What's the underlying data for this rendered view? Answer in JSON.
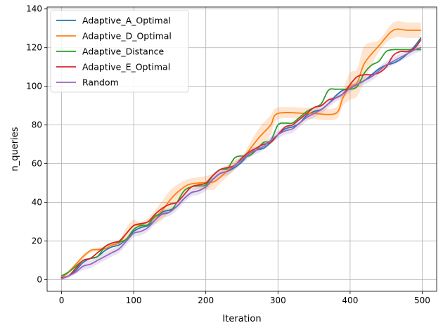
{
  "chart_data": {
    "type": "line",
    "title": "",
    "xlabel": "Iteration",
    "ylabel": "n_queries",
    "xlim": [
      -20,
      520
    ],
    "ylim": [
      -6,
      141
    ],
    "xticks": [
      0,
      100,
      200,
      300,
      400,
      500
    ],
    "yticks": [
      0,
      20,
      40,
      60,
      80,
      100,
      120,
      140
    ],
    "grid": true,
    "legend_position": "top-left",
    "series": [
      {
        "name": "Adaptive_A_Optimal",
        "color": "#1f77b4",
        "x": [
          0,
          10,
          20,
          30,
          40,
          50,
          60,
          70,
          80,
          90,
          100,
          110,
          120,
          130,
          140,
          150,
          160,
          170,
          180,
          190,
          200,
          210,
          220,
          230,
          240,
          250,
          260,
          270,
          280,
          290,
          300,
          310,
          320,
          330,
          340,
          350,
          360,
          370,
          380,
          390,
          400,
          410,
          420,
          430,
          440,
          450,
          460,
          470,
          480,
          490,
          498
        ],
        "y": [
          1,
          2,
          5,
          9,
          11,
          12,
          15,
          17,
          18,
          21,
          25,
          27,
          28,
          31,
          35,
          36,
          38,
          42,
          45,
          46,
          48,
          52,
          55,
          56,
          58,
          61,
          65,
          67,
          68,
          71,
          75,
          78,
          79,
          81,
          85,
          87,
          88,
          91,
          95,
          98,
          99,
          101,
          103,
          106,
          109,
          111,
          112,
          114,
          117,
          121,
          125
        ]
      },
      {
        "name": "Adaptive_D_Optimal",
        "color": "#ff7f0e",
        "band": true,
        "x": [
          0,
          10,
          20,
          30,
          40,
          45,
          60,
          70,
          80,
          90,
          100,
          110,
          125,
          140,
          150,
          160,
          175,
          190,
          210,
          220,
          235,
          250,
          260,
          275,
          290,
          300,
          340,
          350,
          380,
          390,
          400,
          410,
          420,
          440,
          460,
          480,
          498
        ],
        "y": [
          1,
          4,
          8,
          12,
          15,
          15.5,
          16,
          18,
          19,
          24,
          28,
          28.5,
          31,
          36,
          41,
          45,
          49,
          50,
          50.5,
          53,
          58,
          62,
          67,
          74,
          80,
          86,
          86,
          86,
          86,
          94,
          100,
          102,
          112,
          121,
          129,
          129,
          129
        ],
        "band_halfwidth": [
          0,
          1,
          1,
          1,
          1,
          1,
          1,
          1,
          1,
          3,
          3,
          1,
          3,
          5,
          5,
          4,
          3,
          3,
          4,
          3,
          3,
          2,
          3,
          5,
          5,
          3,
          3,
          3,
          3,
          4,
          7,
          7,
          9,
          3,
          4,
          4,
          4
        ]
      },
      {
        "name": "Adaptive_Distance",
        "color": "#2ca02c",
        "x": [
          0,
          10,
          20,
          30,
          40,
          50,
          60,
          70,
          80,
          90,
          100,
          110,
          120,
          130,
          140,
          150,
          160,
          170,
          180,
          190,
          200,
          210,
          220,
          230,
          240,
          250,
          260,
          270,
          280,
          290,
          300,
          310,
          320,
          330,
          340,
          350,
          360,
          370,
          380,
          390,
          400,
          410,
          420,
          430,
          440,
          450,
          460,
          470,
          480,
          490,
          498
        ],
        "y": [
          2,
          4,
          7,
          10,
          11,
          12,
          17,
          19,
          19.5,
          21,
          26,
          28,
          28.5,
          33,
          34,
          35,
          40,
          46,
          48,
          48.5,
          49,
          54,
          57,
          57.5,
          63,
          64,
          64,
          67,
          71,
          72,
          80,
          81,
          81,
          84,
          87,
          89,
          91,
          98,
          98.5,
          98.5,
          98.5,
          100,
          107,
          111,
          113,
          118,
          119,
          119,
          119,
          119,
          119
        ]
      },
      {
        "name": "Adaptive_E_Optimal",
        "color": "#d62728",
        "x": [
          0,
          10,
          20,
          30,
          40,
          50,
          60,
          70,
          80,
          90,
          100,
          110,
          120,
          130,
          140,
          150,
          160,
          170,
          180,
          190,
          200,
          210,
          220,
          230,
          240,
          250,
          260,
          270,
          280,
          290,
          300,
          310,
          320,
          330,
          340,
          350,
          360,
          370,
          380,
          390,
          400,
          410,
          420,
          430,
          440,
          450,
          460,
          470,
          480,
          490,
          498
        ],
        "y": [
          1,
          2,
          6,
          10,
          11,
          14,
          17,
          19,
          20,
          24,
          28,
          29,
          30,
          34,
          37,
          39,
          40,
          44,
          48,
          49,
          50,
          54,
          57,
          58,
          59,
          63,
          66,
          68,
          70,
          71,
          75,
          79,
          80,
          83,
          86,
          89,
          90,
          93,
          94,
          96,
          101,
          105,
          106,
          106,
          107,
          110,
          116,
          118,
          118,
          120,
          124
        ]
      },
      {
        "name": "Random",
        "color": "#9467bd",
        "band": true,
        "x": [
          0,
          10,
          20,
          30,
          40,
          50,
          60,
          70,
          80,
          90,
          100,
          110,
          120,
          130,
          140,
          150,
          160,
          170,
          180,
          190,
          200,
          210,
          220,
          230,
          240,
          250,
          260,
          270,
          280,
          290,
          300,
          310,
          320,
          330,
          340,
          350,
          360,
          370,
          380,
          390,
          400,
          410,
          420,
          430,
          440,
          450,
          460,
          470,
          480,
          490,
          498
        ],
        "y": [
          0.5,
          2,
          4,
          7,
          8,
          10,
          12,
          14,
          16,
          20,
          24,
          25,
          27,
          31,
          34,
          35,
          38,
          42,
          45,
          46,
          48,
          52,
          55,
          56,
          59,
          62,
          65,
          67,
          69,
          72,
          75,
          77,
          78,
          81,
          84,
          86,
          88,
          91,
          94,
          96,
          99,
          101,
          103,
          105,
          108,
          111,
          113,
          115,
          117,
          119,
          120
        ],
        "band_halfwidth": [
          1,
          1,
          1,
          2,
          2,
          2,
          2,
          2,
          2,
          2,
          2,
          2,
          2,
          2,
          2,
          2,
          2,
          2,
          2,
          2,
          2,
          2,
          2,
          2,
          2,
          2,
          2,
          2,
          2,
          2,
          2,
          2,
          2,
          2,
          2,
          2,
          2,
          2,
          2,
          2,
          2,
          2,
          2,
          2,
          2,
          2,
          2,
          2,
          2,
          2,
          2
        ]
      }
    ]
  }
}
